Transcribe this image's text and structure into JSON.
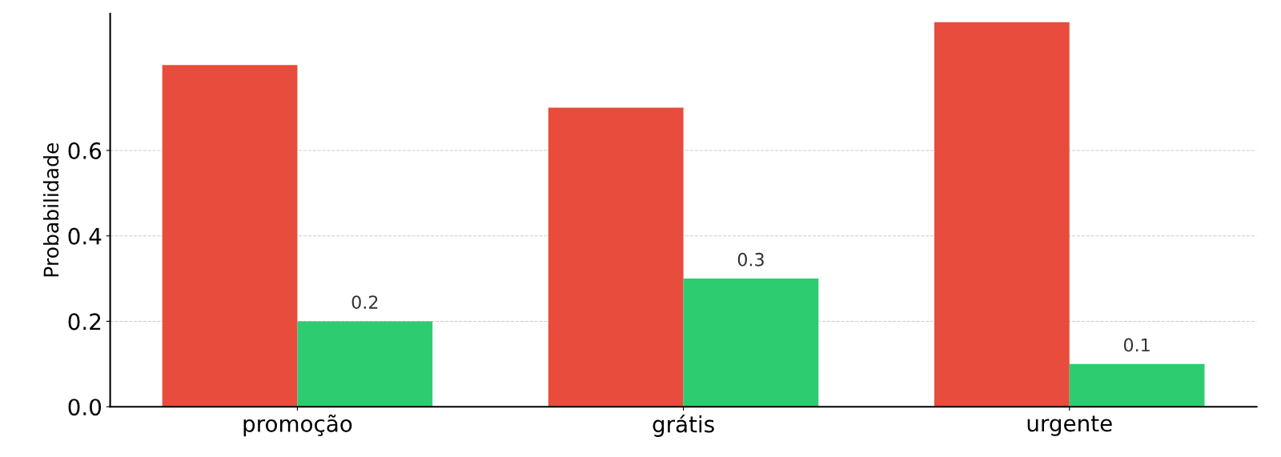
{
  "chart_data": {
    "type": "bar",
    "ylabel": "Probabilidade",
    "categories": [
      "promoção",
      "grátis",
      "urgente"
    ],
    "series": [
      {
        "color": "#e74c3c",
        "values": [
          0.8,
          0.7,
          0.9
        ]
      },
      {
        "color": "#2ecc71",
        "values": [
          0.2,
          0.3,
          0.1
        ],
        "value_labels": [
          "0.2",
          "0.3",
          "0.1"
        ]
      }
    ],
    "ylim": [
      0,
      0.92
    ],
    "yticks": [
      {
        "value": 0,
        "label": "0.0"
      },
      0.2,
      0.4,
      0.6
    ],
    "grid": "y"
  }
}
